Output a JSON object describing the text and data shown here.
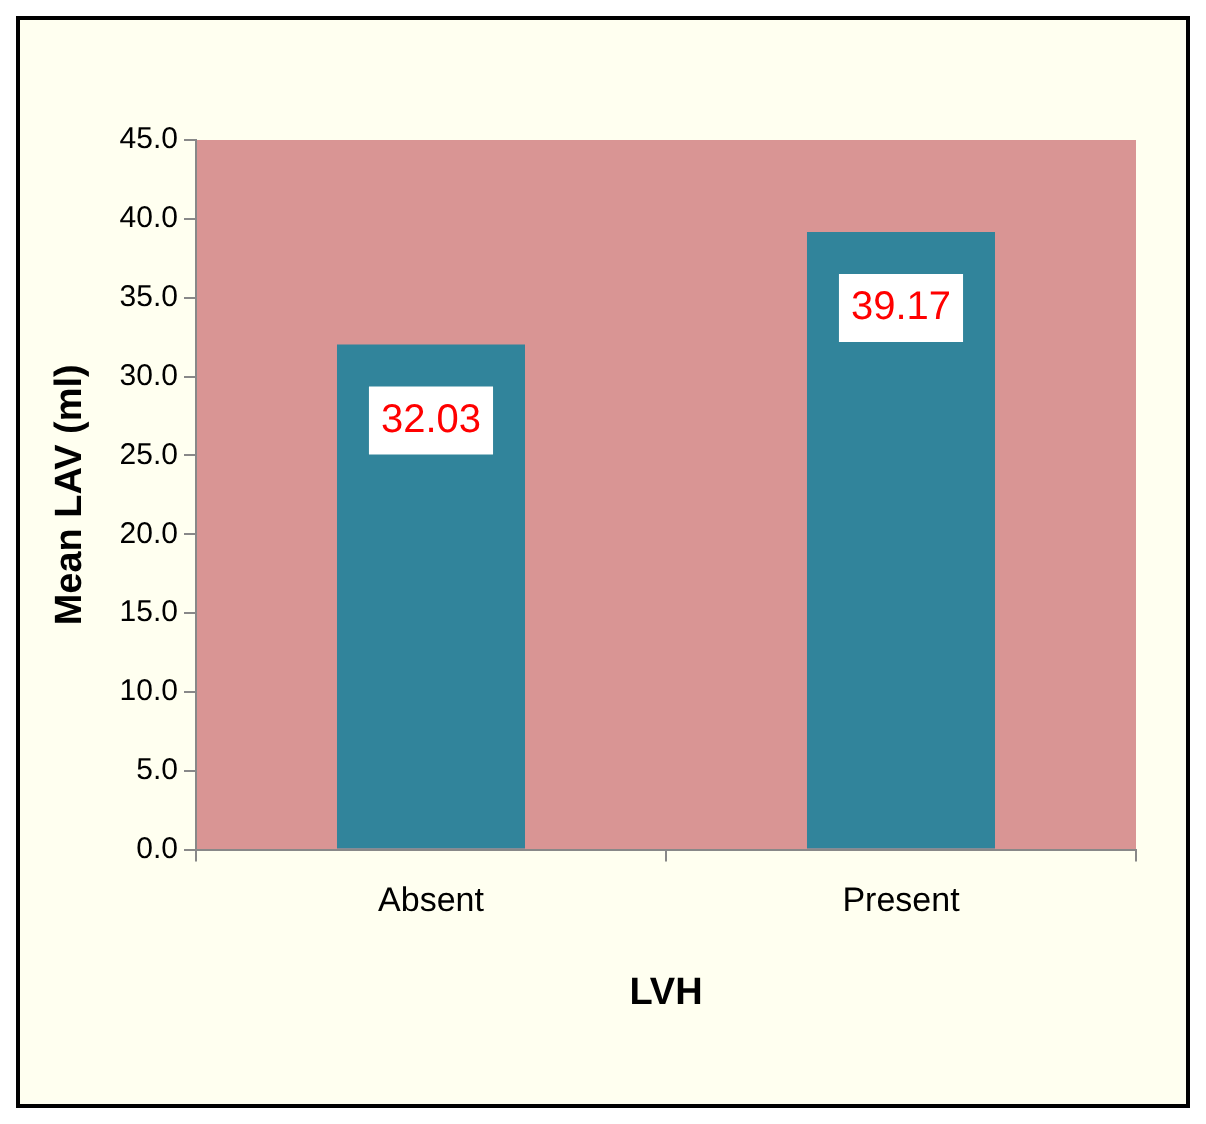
{
  "chart_data": {
    "type": "bar",
    "xlabel": "LVH",
    "ylabel": "Mean LAV (ml)",
    "categories": [
      "Absent",
      "Present"
    ],
    "values": [
      32.03,
      39.17
    ],
    "color": "#31849b",
    "ylim": [
      0,
      45
    ],
    "yticks": [
      {
        "value": 0,
        "label": "0.0"
      },
      {
        "value": 5,
        "label": "5.0"
      },
      {
        "value": 10,
        "label": "10.0"
      },
      {
        "value": 15,
        "label": "15.0"
      },
      {
        "value": 20,
        "label": "20.0"
      },
      {
        "value": 25,
        "label": "25.0"
      },
      {
        "value": 30,
        "label": "30.0"
      },
      {
        "value": 35,
        "label": "35.0"
      },
      {
        "value": 40,
        "label": "40.0"
      },
      {
        "value": 45,
        "label": "45.0"
      }
    ],
    "data_labels": true,
    "grid": false,
    "legend": false
  }
}
